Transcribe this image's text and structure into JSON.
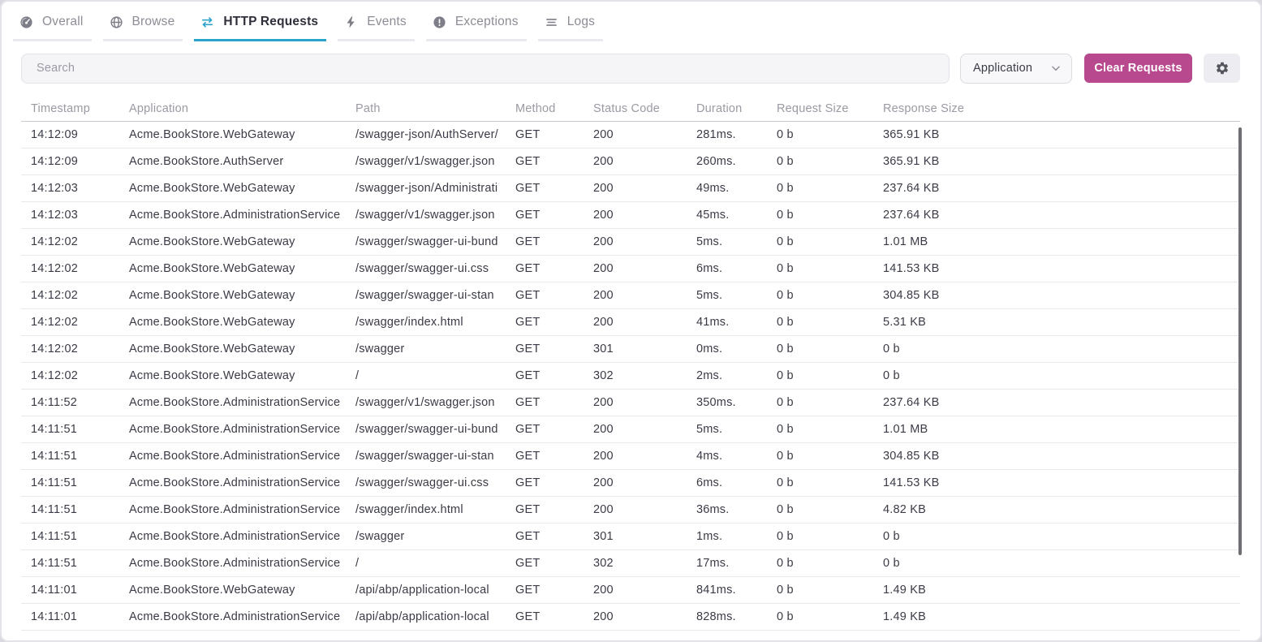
{
  "tabs": {
    "active_color": "#2BA4CB",
    "items": [
      {
        "label": "Overall",
        "icon": "gauge-icon",
        "active": false
      },
      {
        "label": "Browse",
        "icon": "globe-icon",
        "active": false
      },
      {
        "label": "HTTP Requests",
        "icon": "transfer-arrows-icon",
        "active": true
      },
      {
        "label": "Events",
        "icon": "lightning-icon",
        "active": false
      },
      {
        "label": "Exceptions",
        "icon": "exclamation-circle-icon",
        "active": false
      },
      {
        "label": "Logs",
        "icon": "list-icon",
        "active": false
      }
    ]
  },
  "toolbar": {
    "search_placeholder": "Search",
    "filter_selected": "Application",
    "clear_button_label": "Clear Requests",
    "clear_button_color": "#B9498F",
    "settings_icon": "gear-icon"
  },
  "table": {
    "columns": [
      "Timestamp",
      "Application",
      "Path",
      "Method",
      "Status Code",
      "Duration",
      "Request Size",
      "Response Size"
    ],
    "column_keys": [
      "timestamp",
      "application",
      "path",
      "method",
      "status-code",
      "duration",
      "request-size",
      "response-size"
    ],
    "rows": [
      [
        "14:12:09",
        "Acme.BookStore.WebGateway",
        "/swagger-json/AuthServer/",
        "GET",
        "200",
        "281ms.",
        "0 b",
        "365.91 KB"
      ],
      [
        "14:12:09",
        "Acme.BookStore.AuthServer",
        "/swagger/v1/swagger.json",
        "GET",
        "200",
        "260ms.",
        "0 b",
        "365.91 KB"
      ],
      [
        "14:12:03",
        "Acme.BookStore.WebGateway",
        "/swagger-json/Administrati",
        "GET",
        "200",
        "49ms.",
        "0 b",
        "237.64 KB"
      ],
      [
        "14:12:03",
        "Acme.BookStore.AdministrationService",
        "/swagger/v1/swagger.json",
        "GET",
        "200",
        "45ms.",
        "0 b",
        "237.64 KB"
      ],
      [
        "14:12:02",
        "Acme.BookStore.WebGateway",
        "/swagger/swagger-ui-bund",
        "GET",
        "200",
        "5ms.",
        "0 b",
        "1.01 MB"
      ],
      [
        "14:12:02",
        "Acme.BookStore.WebGateway",
        "/swagger/swagger-ui.css",
        "GET",
        "200",
        "6ms.",
        "0 b",
        "141.53 KB"
      ],
      [
        "14:12:02",
        "Acme.BookStore.WebGateway",
        "/swagger/swagger-ui-stan",
        "GET",
        "200",
        "5ms.",
        "0 b",
        "304.85 KB"
      ],
      [
        "14:12:02",
        "Acme.BookStore.WebGateway",
        "/swagger/index.html",
        "GET",
        "200",
        "41ms.",
        "0 b",
        "5.31 KB"
      ],
      [
        "14:12:02",
        "Acme.BookStore.WebGateway",
        "/swagger",
        "GET",
        "301",
        "0ms.",
        "0 b",
        "0 b"
      ],
      [
        "14:12:02",
        "Acme.BookStore.WebGateway",
        "/",
        "GET",
        "302",
        "2ms.",
        "0 b",
        "0 b"
      ],
      [
        "14:11:52",
        "Acme.BookStore.AdministrationService",
        "/swagger/v1/swagger.json",
        "GET",
        "200",
        "350ms.",
        "0 b",
        "237.64 KB"
      ],
      [
        "14:11:51",
        "Acme.BookStore.AdministrationService",
        "/swagger/swagger-ui-bund",
        "GET",
        "200",
        "5ms.",
        "0 b",
        "1.01 MB"
      ],
      [
        "14:11:51",
        "Acme.BookStore.AdministrationService",
        "/swagger/swagger-ui-stan",
        "GET",
        "200",
        "4ms.",
        "0 b",
        "304.85 KB"
      ],
      [
        "14:11:51",
        "Acme.BookStore.AdministrationService",
        "/swagger/swagger-ui.css",
        "GET",
        "200",
        "6ms.",
        "0 b",
        "141.53 KB"
      ],
      [
        "14:11:51",
        "Acme.BookStore.AdministrationService",
        "/swagger/index.html",
        "GET",
        "200",
        "36ms.",
        "0 b",
        "4.82 KB"
      ],
      [
        "14:11:51",
        "Acme.BookStore.AdministrationService",
        "/swagger",
        "GET",
        "301",
        "1ms.",
        "0 b",
        "0 b"
      ],
      [
        "14:11:51",
        "Acme.BookStore.AdministrationService",
        "/",
        "GET",
        "302",
        "17ms.",
        "0 b",
        "0 b"
      ],
      [
        "14:11:01",
        "Acme.BookStore.WebGateway",
        "/api/abp/application-local",
        "GET",
        "200",
        "841ms.",
        "0 b",
        "1.49 KB"
      ],
      [
        "14:11:01",
        "Acme.BookStore.AdministrationService",
        "/api/abp/application-local",
        "GET",
        "200",
        "828ms.",
        "0 b",
        "1.49 KB"
      ]
    ]
  }
}
